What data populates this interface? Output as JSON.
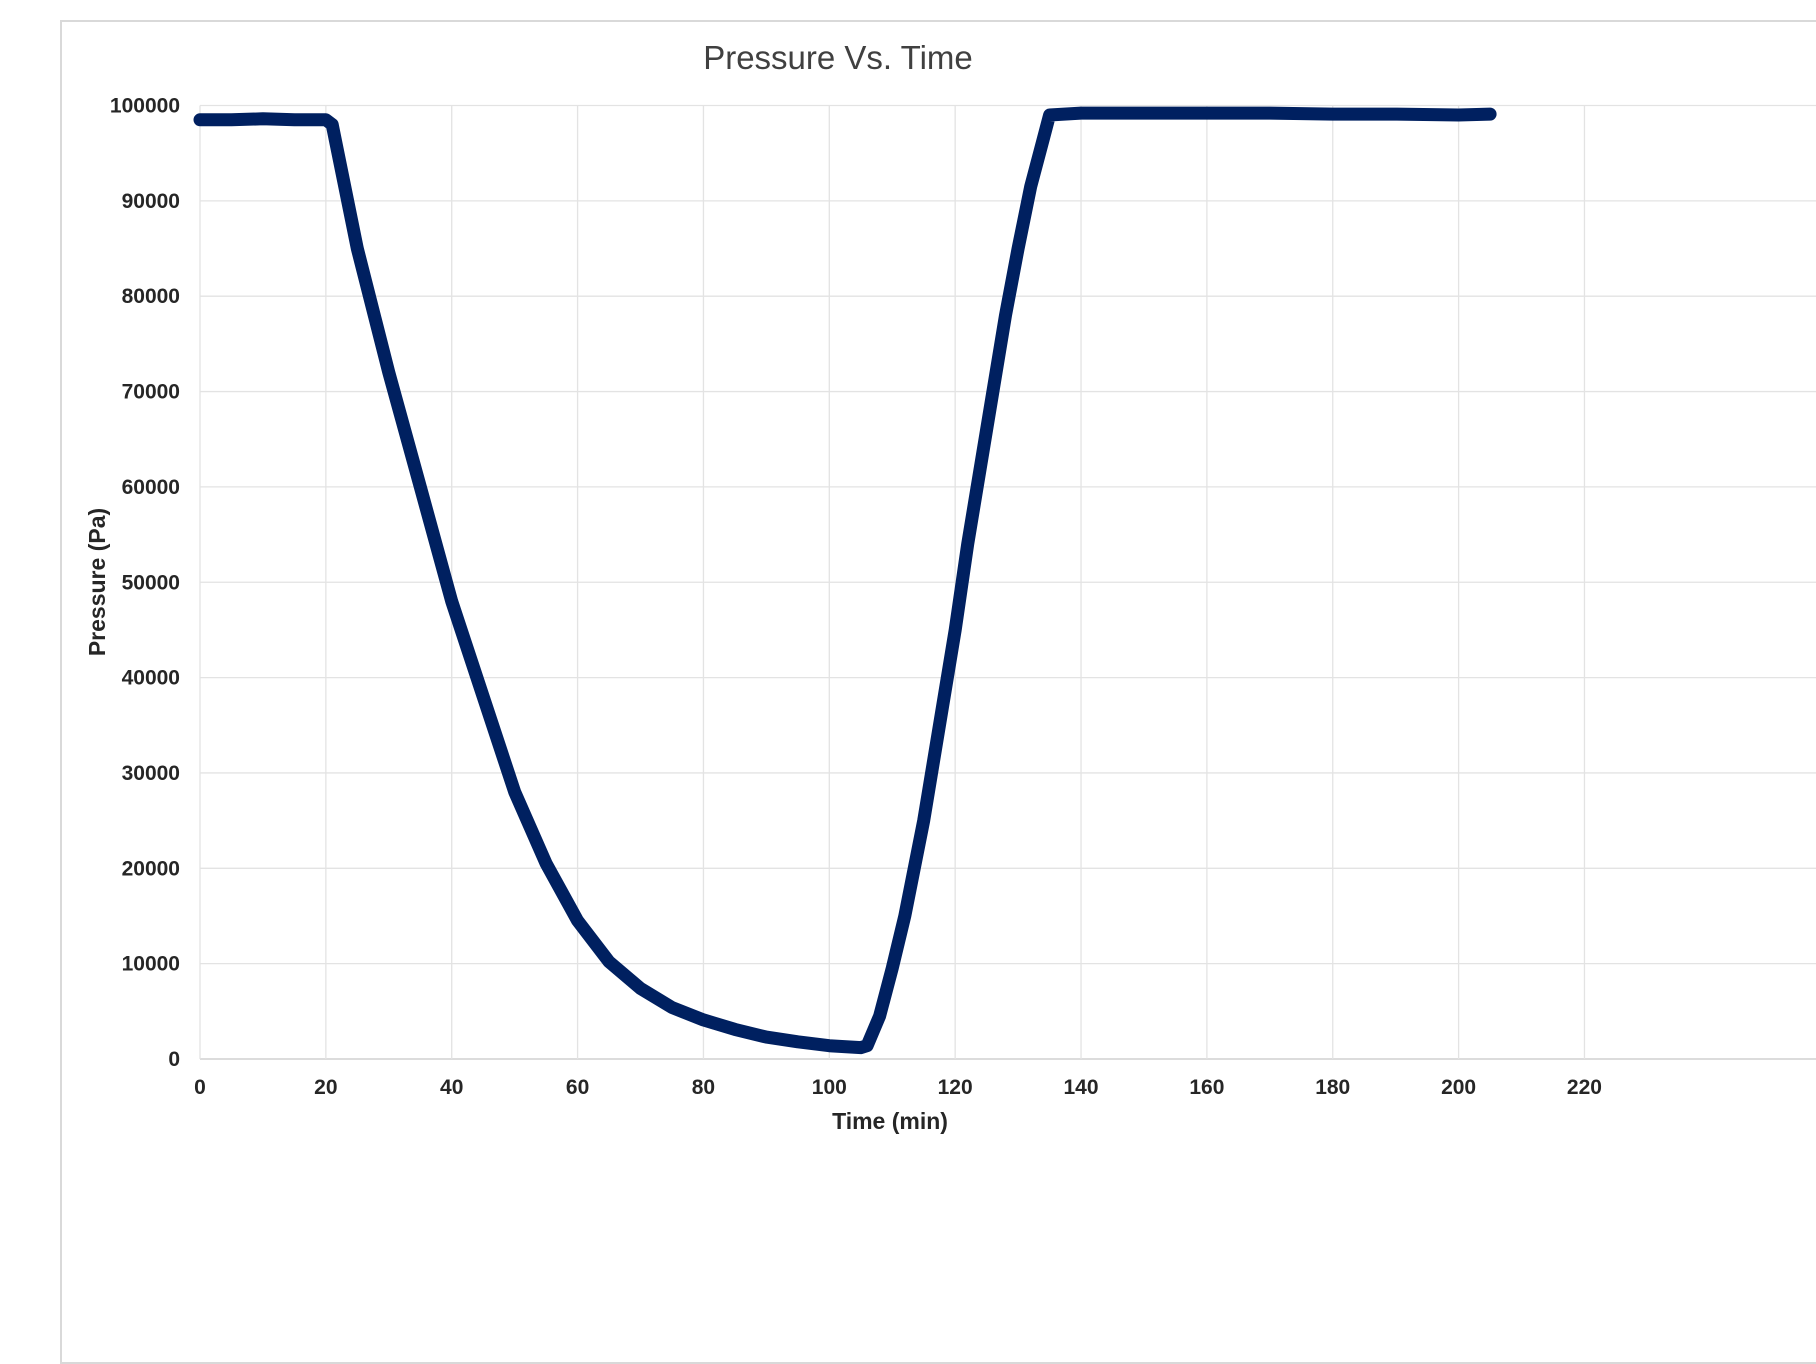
{
  "chart_data": {
    "type": "line",
    "title": "Pressure Vs. Time",
    "xlabel": "Time (min)",
    "ylabel": "Pressure (Pa)",
    "xlim": [
      0,
      220
    ],
    "ylim": [
      0,
      100000
    ],
    "x_ticks": [
      0,
      20,
      40,
      60,
      80,
      100,
      120,
      140,
      160,
      180,
      200,
      220
    ],
    "y_ticks": [
      0,
      10000,
      20000,
      30000,
      40000,
      50000,
      60000,
      70000,
      80000,
      90000,
      100000
    ],
    "x_tick_labels": [
      "0",
      "20",
      "40",
      "60",
      "80",
      "100",
      "120",
      "140",
      "160",
      "180",
      "200",
      "220"
    ],
    "y_tick_labels": [
      "0",
      "10000",
      "20000",
      "30000",
      "40000",
      "50000",
      "60000",
      "70000",
      "80000",
      "90000",
      "100000"
    ],
    "grid": true,
    "legend": "none",
    "series": [
      {
        "color": "#002060",
        "x": [
          0,
          5,
          10,
          15,
          20,
          21,
          25,
          30,
          35,
          40,
          45,
          50,
          55,
          60,
          65,
          70,
          75,
          80,
          85,
          90,
          95,
          100,
          105,
          106,
          108,
          110,
          112,
          115,
          118,
          120,
          122,
          125,
          128,
          130,
          132,
          134,
          135,
          140,
          150,
          160,
          170,
          180,
          190,
          200,
          205
        ],
        "y": [
          98500,
          98500,
          98600,
          98500,
          98500,
          98000,
          85000,
          72000,
          60000,
          48000,
          38000,
          28000,
          20500,
          14500,
          10200,
          7400,
          5400,
          4100,
          3100,
          2300,
          1800,
          1400,
          1200,
          1400,
          4500,
          9500,
          15000,
          25000,
          37000,
          45000,
          54000,
          66000,
          78000,
          85000,
          91500,
          96500,
          99000,
          99200,
          99200,
          99200,
          99200,
          99100,
          99100,
          99000,
          99100
        ]
      }
    ]
  },
  "colors": {
    "line": "#002060",
    "grid": "#e3e3e3",
    "frame": "#d9d9d9"
  }
}
